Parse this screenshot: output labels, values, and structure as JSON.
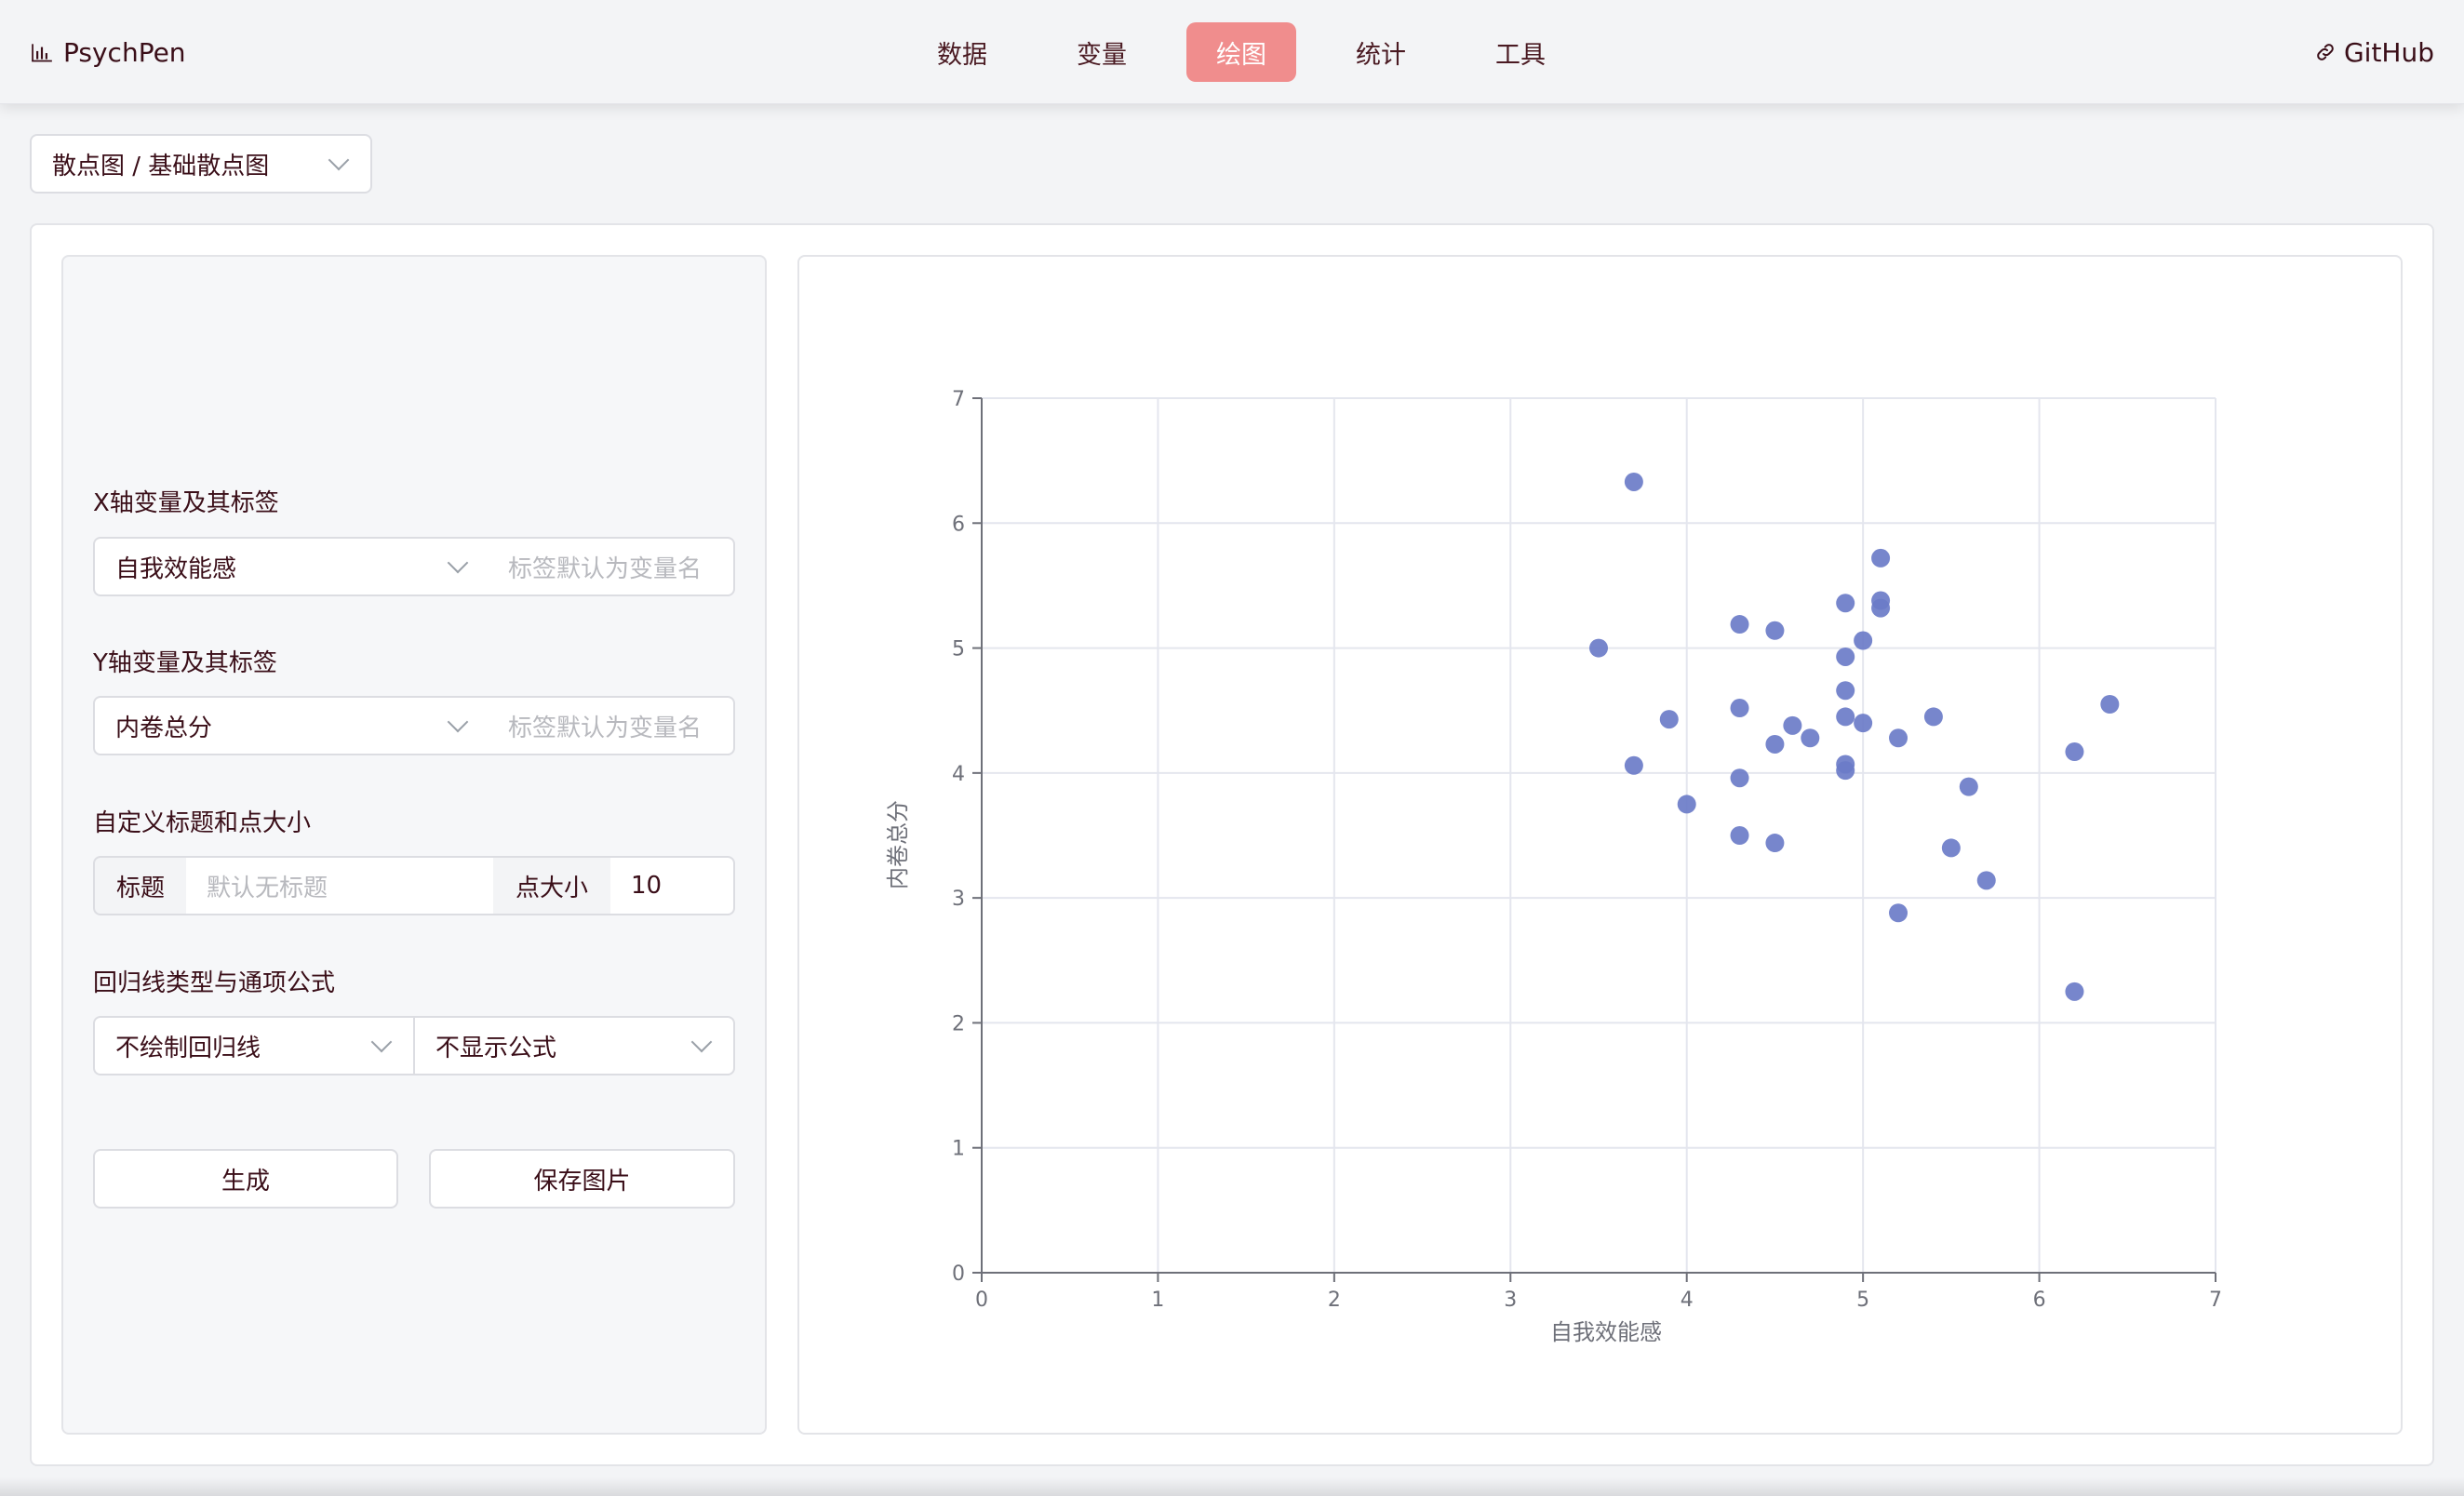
{
  "header": {
    "brand": "PsychPen",
    "github": "GitHub",
    "tabs": [
      {
        "label": "数据",
        "active": false
      },
      {
        "label": "变量",
        "active": false
      },
      {
        "label": "绘图",
        "active": true
      },
      {
        "label": "统计",
        "active": false
      },
      {
        "label": "工具",
        "active": false
      }
    ],
    "accent_color": "#f08d8d"
  },
  "chart_type_select": {
    "value": "散点图 / 基础散点图"
  },
  "form": {
    "x_section": "X轴变量及其标签",
    "x_variable": "自我效能感",
    "x_label_placeholder": "标签默认为变量名",
    "y_section": "Y轴变量及其标签",
    "y_variable": "内卷总分",
    "y_label_placeholder": "标签默认为变量名",
    "title_section": "自定义标题和点大小",
    "title_addon": "标题",
    "title_placeholder": "默认无标题",
    "size_addon": "点大小",
    "size_value": "10",
    "regression_section": "回归线类型与通项公式",
    "regression_type": "不绘制回归线",
    "formula_mode": "不显示公式",
    "generate_button": "生成",
    "save_button": "保存图片"
  },
  "chart_data": {
    "type": "scatter",
    "xlabel": "自我效能感",
    "ylabel": "内卷总分",
    "xlim": [
      0,
      7
    ],
    "ylim": [
      0,
      7
    ],
    "xticks": [
      "0",
      "1",
      "2",
      "3",
      "4",
      "5",
      "6",
      "7"
    ],
    "yticks": [
      "0",
      "1",
      "2",
      "3",
      "4",
      "5",
      "6",
      "7"
    ],
    "grid": true,
    "point_color": "#6b7cc8",
    "points": [
      [
        3.7,
        6.33
      ],
      [
        3.5,
        5.0
      ],
      [
        3.7,
        4.06
      ],
      [
        3.9,
        4.43
      ],
      [
        4.0,
        3.75
      ],
      [
        4.3,
        5.19
      ],
      [
        4.3,
        4.52
      ],
      [
        4.3,
        3.96
      ],
      [
        4.3,
        3.5
      ],
      [
        4.5,
        5.14
      ],
      [
        4.5,
        4.23
      ],
      [
        4.5,
        3.44
      ],
      [
        4.6,
        4.38
      ],
      [
        4.7,
        4.28
      ],
      [
        4.9,
        5.36
      ],
      [
        4.9,
        4.93
      ],
      [
        4.9,
        4.66
      ],
      [
        4.9,
        4.45
      ],
      [
        4.9,
        4.07
      ],
      [
        4.9,
        4.02
      ],
      [
        5.0,
        5.06
      ],
      [
        5.0,
        4.4
      ],
      [
        5.1,
        5.72
      ],
      [
        5.1,
        5.38
      ],
      [
        5.1,
        5.32
      ],
      [
        5.2,
        4.28
      ],
      [
        5.2,
        2.88
      ],
      [
        5.4,
        4.45
      ],
      [
        5.5,
        3.4
      ],
      [
        5.6,
        3.89
      ],
      [
        5.7,
        3.14
      ],
      [
        6.2,
        4.17
      ],
      [
        6.2,
        2.25
      ],
      [
        6.4,
        4.55
      ]
    ]
  }
}
